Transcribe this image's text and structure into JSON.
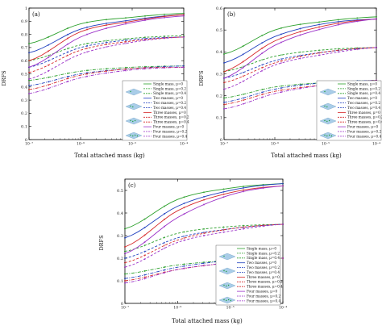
{
  "figure": {
    "legend_labels": [
      "Single mass, μ=0",
      "Single mass, μ=0.2",
      "Single mass, μ=0.4",
      "Two masses, μ=0",
      "Two masses, μ=0.2",
      "Two masses, μ=0.4",
      "Three masses, μ=0",
      "Three masses, μ=0.2",
      "Three masses, μ=0.4",
      "Four masses, μ=0",
      "Four masses, μ=0.2",
      "Four masses, μ=0.4"
    ],
    "group_colors": [
      "#2ca02c",
      "#1f3fbf",
      "#d62728",
      "#9b30c8"
    ],
    "mu_styles": [
      "solid",
      "dashed",
      "dashdot"
    ],
    "xlabel": "Total attached mass (kg)",
    "ylabel": "DRFS"
  },
  "chart_data": [
    {
      "panel": "(a)",
      "type": "line",
      "xscale": "log",
      "xlim": [
        1e-07,
        0.0001
      ],
      "ylim": [
        0,
        1.0
      ],
      "yticks": [
        "0",
        "0.1",
        "0.2",
        "0.3",
        "0.4",
        "0.5",
        "0.6",
        "0.7",
        "0.8",
        "0.9",
        "1"
      ],
      "xticks": [
        "10⁻⁷",
        "10⁻⁶",
        "10⁻⁵",
        "10⁻⁴"
      ],
      "x": [
        1e-07,
        1e-06,
        1e-05,
        0.0001
      ],
      "series": [
        {
          "name": "Single mass, μ=0",
          "values": [
            0.73,
            0.88,
            0.93,
            0.96
          ]
        },
        {
          "name": "Single mass, μ=0.2",
          "values": [
            0.6,
            0.72,
            0.77,
            0.79
          ]
        },
        {
          "name": "Single mass, μ=0.4",
          "values": [
            0.45,
            0.52,
            0.55,
            0.56
          ]
        },
        {
          "name": "Two masses, μ=0",
          "values": [
            0.66,
            0.84,
            0.91,
            0.95
          ]
        },
        {
          "name": "Two masses, μ=0.2",
          "values": [
            0.55,
            0.7,
            0.76,
            0.78
          ]
        },
        {
          "name": "Two masses, μ=0.4",
          "values": [
            0.41,
            0.5,
            0.54,
            0.56
          ]
        },
        {
          "name": "Three masses, μ=0",
          "values": [
            0.6,
            0.82,
            0.9,
            0.95
          ]
        },
        {
          "name": "Three masses, μ=0.2",
          "values": [
            0.51,
            0.68,
            0.75,
            0.78
          ]
        },
        {
          "name": "Three masses, μ=0.4",
          "values": [
            0.38,
            0.49,
            0.54,
            0.55
          ]
        },
        {
          "name": "Four masses, μ=0",
          "values": [
            0.55,
            0.78,
            0.89,
            0.94
          ]
        },
        {
          "name": "Four masses, μ=0.2",
          "values": [
            0.46,
            0.65,
            0.74,
            0.78
          ]
        },
        {
          "name": "Four masses, μ=0.4",
          "values": [
            0.35,
            0.47,
            0.53,
            0.55
          ]
        }
      ]
    },
    {
      "panel": "(b)",
      "type": "line",
      "xscale": "log",
      "xlim": [
        1e-07,
        0.0001
      ],
      "ylim": [
        0,
        0.6
      ],
      "yticks": [
        "0",
        "0.1",
        "0.2",
        "0.3",
        "0.4",
        "0.5",
        "0.6"
      ],
      "xticks": [
        "10⁻⁷",
        "10⁻⁶",
        "10⁻⁵",
        "10⁻⁴"
      ],
      "x": [
        1e-07,
        1e-06,
        1e-05,
        0.0001
      ],
      "series": [
        {
          "name": "Single mass, μ=0",
          "values": [
            0.39,
            0.5,
            0.54,
            0.56
          ]
        },
        {
          "name": "Single mass, μ=0.2",
          "values": [
            0.31,
            0.38,
            0.41,
            0.42
          ]
        },
        {
          "name": "Single mass, μ=0.4",
          "values": [
            0.19,
            0.24,
            0.26,
            0.27
          ]
        },
        {
          "name": "Two masses, μ=0",
          "values": [
            0.35,
            0.47,
            0.53,
            0.55
          ]
        },
        {
          "name": "Two masses, μ=0.2",
          "values": [
            0.28,
            0.36,
            0.4,
            0.42
          ]
        },
        {
          "name": "Two masses, μ=0.4",
          "values": [
            0.17,
            0.23,
            0.26,
            0.27
          ]
        },
        {
          "name": "Three masses, μ=0",
          "values": [
            0.31,
            0.45,
            0.52,
            0.55
          ]
        },
        {
          "name": "Three masses, μ=0.2",
          "values": [
            0.26,
            0.35,
            0.4,
            0.42
          ]
        },
        {
          "name": "Three masses, μ=0.4",
          "values": [
            0.16,
            0.22,
            0.25,
            0.27
          ]
        },
        {
          "name": "Four masses, μ=0",
          "values": [
            0.28,
            0.43,
            0.51,
            0.55
          ]
        },
        {
          "name": "Four masses, μ=0.2",
          "values": [
            0.23,
            0.34,
            0.39,
            0.42
          ]
        },
        {
          "name": "Four masses, μ=0.4",
          "values": [
            0.14,
            0.21,
            0.25,
            0.27
          ]
        }
      ]
    },
    {
      "panel": "(c)",
      "type": "line",
      "xscale": "log",
      "xlim": [
        1e-07,
        0.0001
      ],
      "ylim": [
        0,
        0.55
      ],
      "yticks": [
        "0",
        "0.1",
        "0.2",
        "0.3",
        "0.4",
        "0.5"
      ],
      "xticks": [
        "10⁻⁷",
        "10⁻⁶",
        "10⁻⁵",
        "10⁻⁴"
      ],
      "x": [
        1e-07,
        1e-06,
        1e-05,
        0.0001
      ],
      "series": [
        {
          "name": "Single mass, μ=0",
          "values": [
            0.33,
            0.46,
            0.51,
            0.53
          ]
        },
        {
          "name": "Single mass, μ=0.2",
          "values": [
            0.23,
            0.31,
            0.34,
            0.35
          ]
        },
        {
          "name": "Single mass, μ=0.4",
          "values": [
            0.13,
            0.17,
            0.19,
            0.2
          ]
        },
        {
          "name": "Two masses, μ=0",
          "values": [
            0.29,
            0.43,
            0.5,
            0.53
          ]
        },
        {
          "name": "Two masses, μ=0.2",
          "values": [
            0.2,
            0.29,
            0.33,
            0.35
          ]
        },
        {
          "name": "Two masses, μ=0.4",
          "values": [
            0.11,
            0.16,
            0.19,
            0.2
          ]
        },
        {
          "name": "Three masses, μ=0",
          "values": [
            0.25,
            0.41,
            0.49,
            0.52
          ]
        },
        {
          "name": "Three masses, μ=0.2",
          "values": [
            0.18,
            0.28,
            0.33,
            0.35
          ]
        },
        {
          "name": "Three masses, μ=0.4",
          "values": [
            0.1,
            0.15,
            0.18,
            0.2
          ]
        },
        {
          "name": "Four masses, μ=0",
          "values": [
            0.22,
            0.38,
            0.48,
            0.52
          ]
        },
        {
          "name": "Four masses, μ=0.2",
          "values": [
            0.16,
            0.27,
            0.32,
            0.35
          ]
        },
        {
          "name": "Four masses, μ=0.4",
          "values": [
            0.09,
            0.15,
            0.18,
            0.2
          ]
        }
      ]
    }
  ]
}
